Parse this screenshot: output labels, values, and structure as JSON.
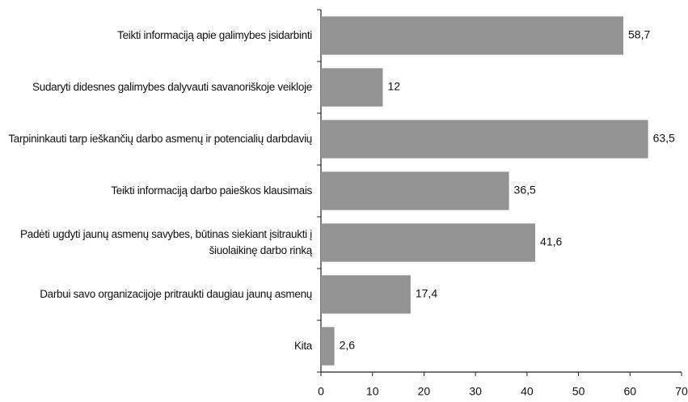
{
  "chart_data": {
    "type": "bar",
    "orientation": "horizontal",
    "categories": [
      "Teikti informaciją apie galimybes įsidarbinti",
      "Sudaryti didesnes galimybes dalyvauti savanoriškoje veikloje",
      "Tarpininkauti tarp ieškančių darbo asmenų ir potencialių darbdavių",
      "Teikti informaciją darbo paieškos klausimais",
      "Padėti ugdyti jaunų asmenų savybes, būtinas siekiant įsitraukti į šiuolaikinę darbo rinką",
      "Darbui savo organizacijoje pritraukti daugiau jaunų asmenų",
      "Kita"
    ],
    "values": [
      58.7,
      12,
      63.5,
      36.5,
      41.6,
      17.4,
      2.6
    ],
    "value_labels": [
      "58,7",
      "12",
      "63,5",
      "36,5",
      "41,6",
      "17,4",
      "2,6"
    ],
    "color": "#939393",
    "xlim": [
      0,
      70
    ],
    "xticks": [
      0,
      10,
      20,
      30,
      40,
      50,
      60,
      70
    ]
  }
}
